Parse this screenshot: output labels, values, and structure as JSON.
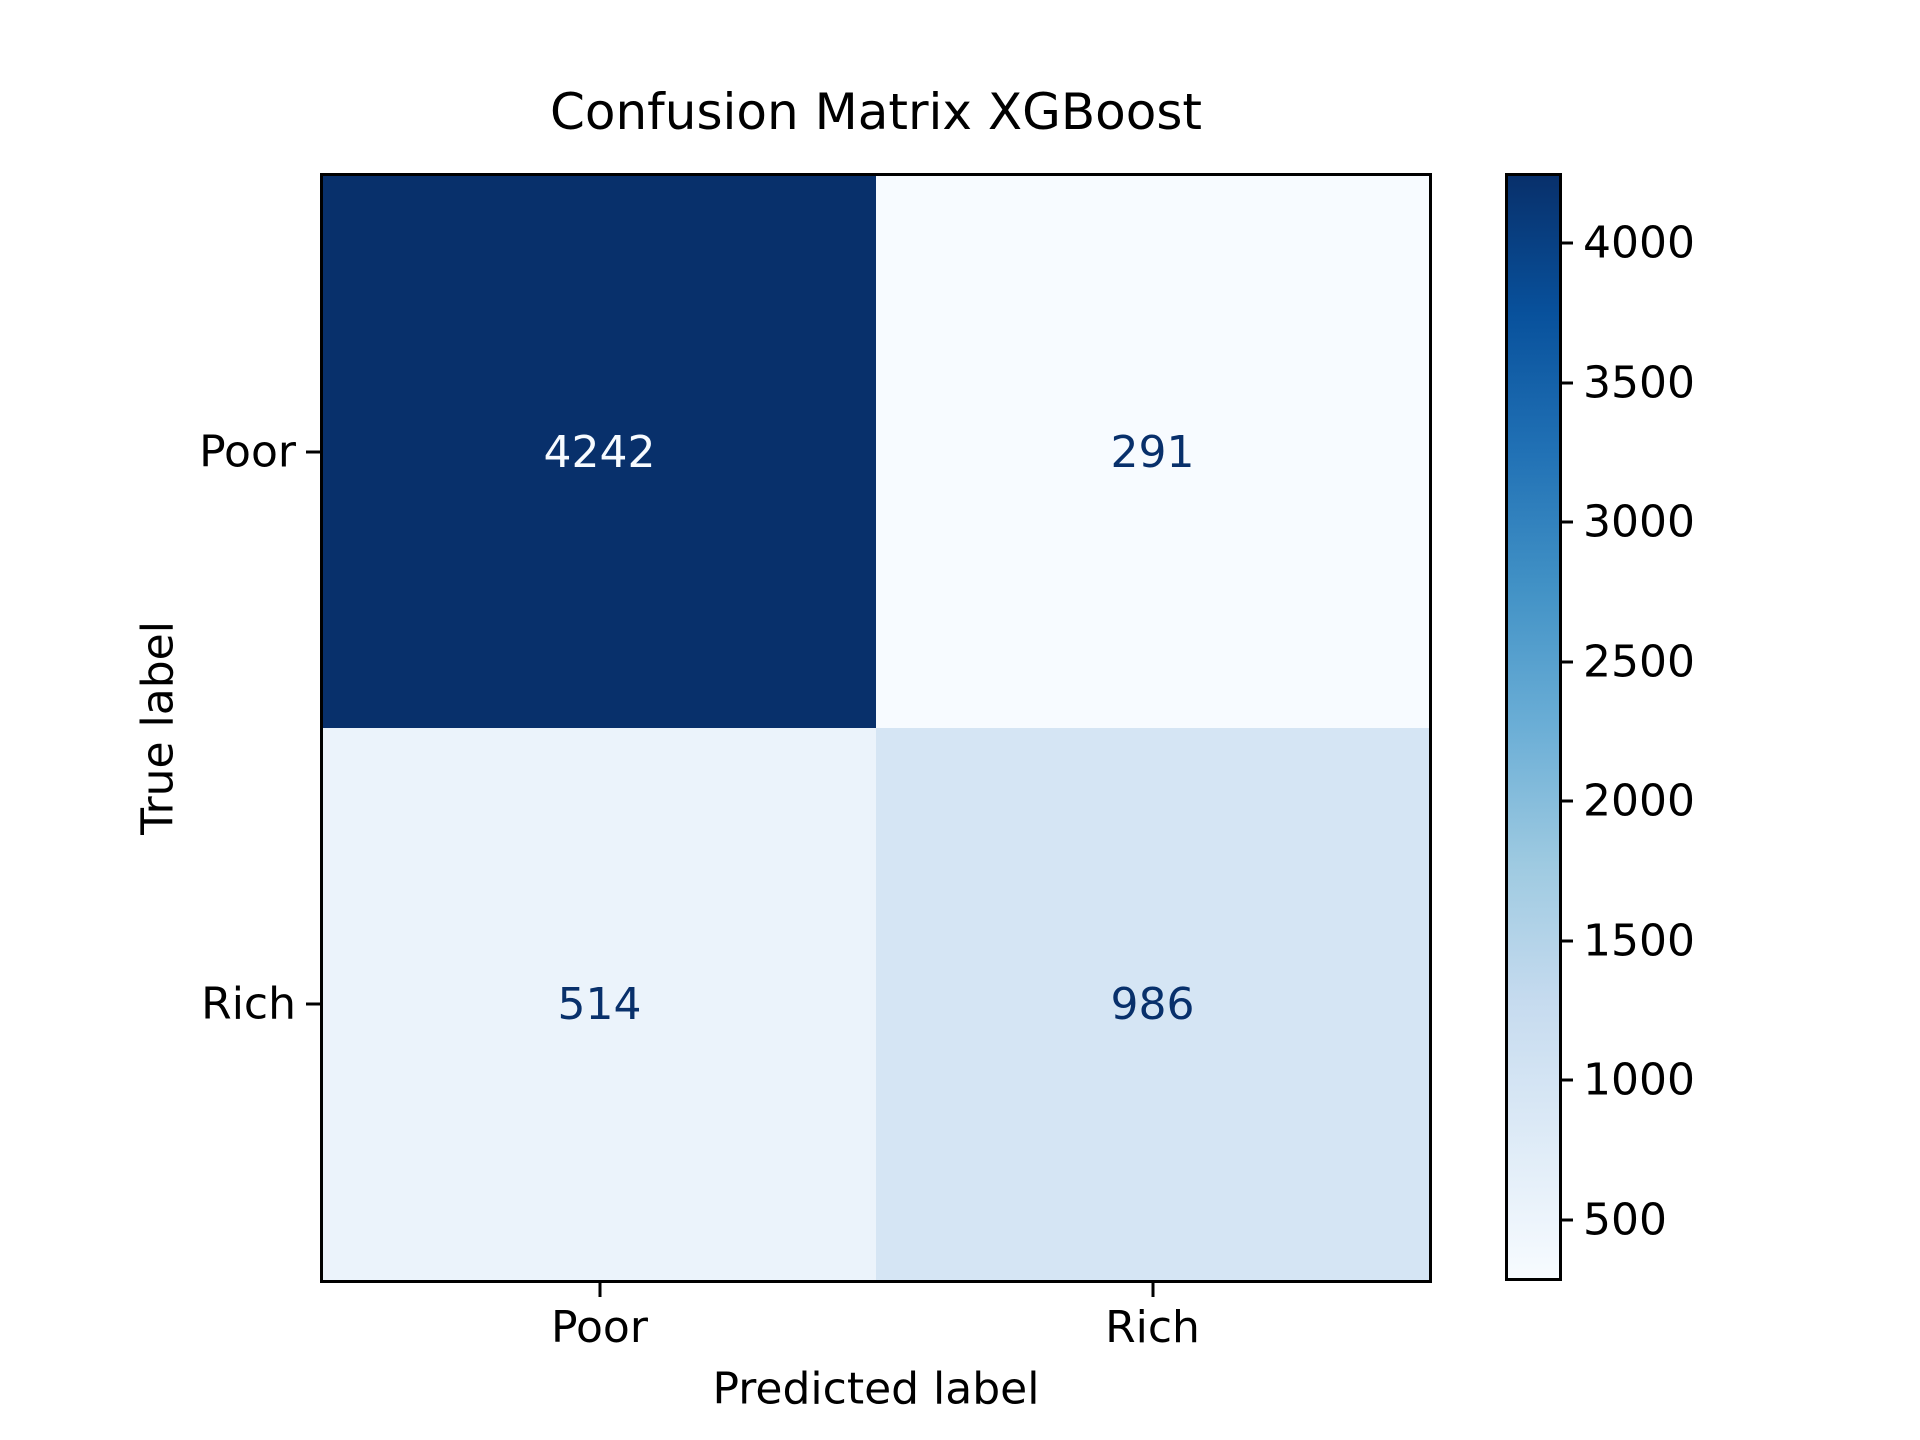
{
  "figure": {
    "background": "#ffffff",
    "text_color": "#000000"
  },
  "chart_data": {
    "type": "heatmap",
    "title": "Confusion Matrix XGBoost",
    "xlabel": "Predicted label",
    "ylabel": "True label",
    "x_categories": [
      "Poor",
      "Rich"
    ],
    "y_categories": [
      "Poor",
      "Rich"
    ],
    "matrix": [
      [
        4242,
        291
      ],
      [
        514,
        986
      ]
    ],
    "vmin": 291,
    "vmax": 4242,
    "colormap": "Blues",
    "colormap_stops": [
      "#f7fbff",
      "#deebf7",
      "#c6dbef",
      "#9ecae1",
      "#6baed6",
      "#4292c6",
      "#2171b5",
      "#08519c",
      "#08306b"
    ],
    "cell_colors": [
      [
        "#08306b",
        "#f7fbff"
      ],
      [
        "#ebf3fb",
        "#d5e5f4"
      ]
    ],
    "cell_text_colors": [
      [
        "#f7fbff",
        "#08306b"
      ],
      [
        "#08306b",
        "#08306b"
      ]
    ],
    "colorbar_ticks": [
      500,
      1000,
      1500,
      2000,
      2500,
      3000,
      3500,
      4000
    ],
    "legend_position": "right-colorbar",
    "grid": false
  }
}
